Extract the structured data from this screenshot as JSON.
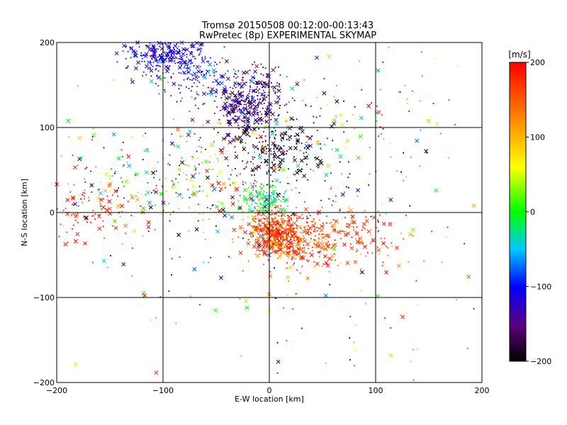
{
  "chart_data": {
    "type": "scatter",
    "title": "Tromsø 20150508 00:12:00-00:13:43",
    "subtitle": "RwPretec (8p) EXPERIMENTAL SKYMAP",
    "xlabel": "E-W location [km]",
    "ylabel": "N-S location [km]",
    "xlim": [
      -200,
      200
    ],
    "ylim": [
      -200,
      200
    ],
    "xticks": [
      -200,
      -100,
      0,
      100,
      200
    ],
    "yticks": [
      -200,
      -100,
      0,
      100,
      200
    ],
    "grid": true,
    "colorbar": {
      "label": "[m/s]",
      "range": [
        -200,
        200
      ],
      "ticks": [
        200,
        100,
        0,
        -100,
        -200
      ],
      "colormap": "rainbow",
      "placement": "right"
    },
    "marker_types": [
      "cross",
      "dot"
    ],
    "clusters": [
      {
        "x": -95,
        "y": 185,
        "sx": 18,
        "sy": 12,
        "n": 260,
        "v": -115,
        "vs": 20
      },
      {
        "x": -60,
        "y": 160,
        "sx": 25,
        "sy": 15,
        "n": 120,
        "v": -95,
        "vs": 30
      },
      {
        "x": -25,
        "y": 125,
        "sx": 14,
        "sy": 14,
        "n": 260,
        "v": -150,
        "vs": 25
      },
      {
        "x": -5,
        "y": 150,
        "sx": 12,
        "sy": 12,
        "n": 80,
        "v": -160,
        "vs": 20
      },
      {
        "x": 5,
        "y": 80,
        "sx": 25,
        "sy": 25,
        "n": 230,
        "v": -185,
        "vs": 15
      },
      {
        "x": -5,
        "y": 15,
        "sx": 10,
        "sy": 10,
        "n": 140,
        "v": -20,
        "vs": 30
      },
      {
        "x": 5,
        "y": -25,
        "sx": 12,
        "sy": 12,
        "n": 380,
        "v": 170,
        "vs": 30
      },
      {
        "x": 30,
        "y": -35,
        "sx": 22,
        "sy": 18,
        "n": 200,
        "v": 150,
        "vs": 45
      },
      {
        "x": 60,
        "y": -30,
        "sx": 30,
        "sy": 18,
        "n": 180,
        "v": 175,
        "vs": 25
      },
      {
        "x": -170,
        "y": 0,
        "sx": 25,
        "sy": 20,
        "n": 100,
        "v": 180,
        "vs": 20
      },
      {
        "x": -120,
        "y": 40,
        "sx": 45,
        "sy": 35,
        "n": 150,
        "v": 0,
        "vs": 130
      },
      {
        "x": -40,
        "y": 40,
        "sx": 35,
        "sy": 35,
        "n": 180,
        "v": 60,
        "vs": 130
      },
      {
        "x": 80,
        "y": 80,
        "sx": 50,
        "sy": 50,
        "n": 110,
        "v": -60,
        "vs": 130
      },
      {
        "x": 0,
        "y": 0,
        "sx": 120,
        "sy": 110,
        "n": 260,
        "v": 0,
        "vs": 140
      }
    ]
  }
}
